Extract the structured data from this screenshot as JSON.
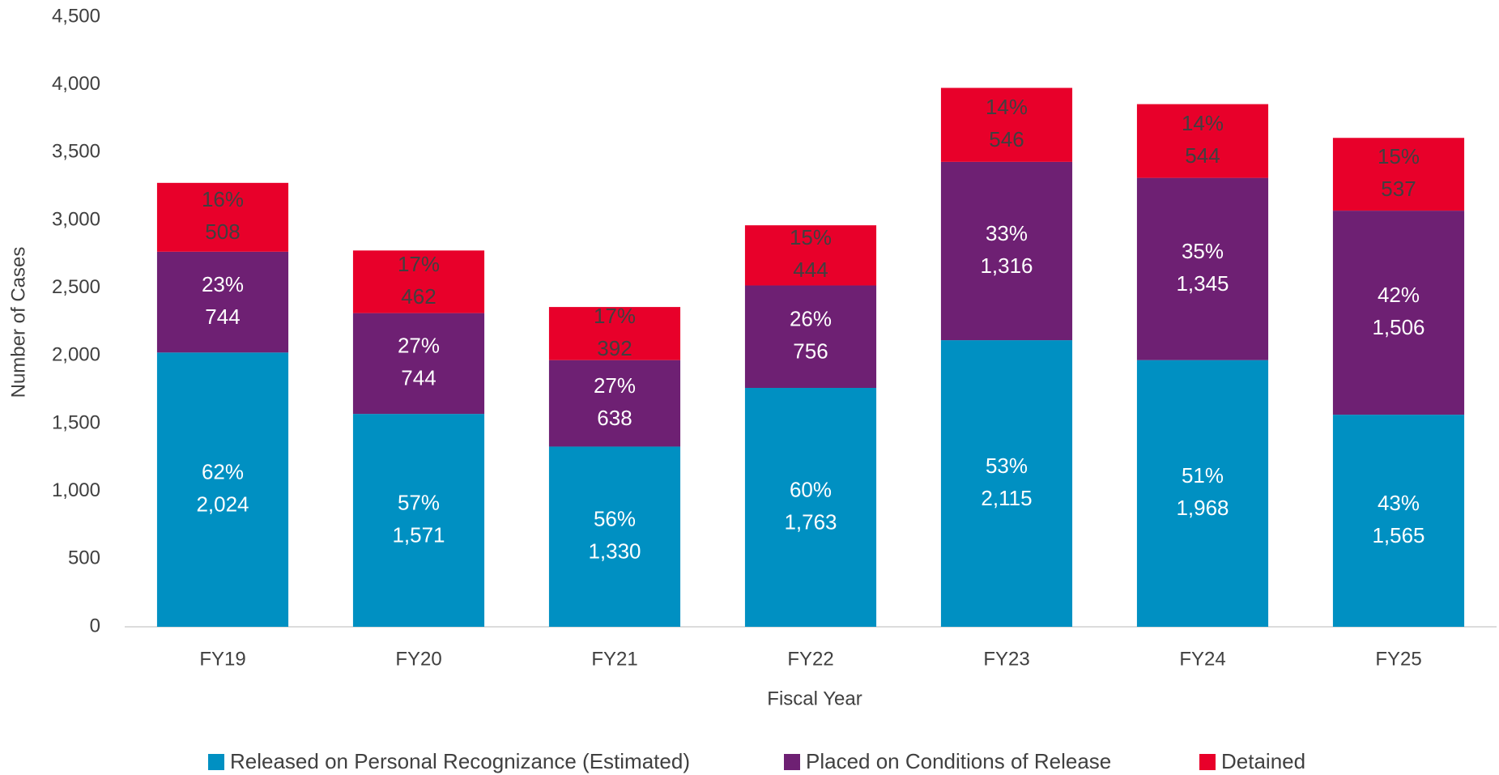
{
  "chart_data": {
    "type": "stacked-bar",
    "x_label": "Fiscal Year",
    "y_label": "Number of Cases",
    "categories": [
      "FY19",
      "FY20",
      "FY21",
      "FY22",
      "FY23",
      "FY24",
      "FY25"
    ],
    "series": [
      {
        "name": "Released on Personal Recognizance (Estimated)",
        "color": "#0090c2",
        "values": [
          2024,
          1571,
          1330,
          1763,
          2115,
          1968,
          1565
        ],
        "value_labels": [
          "2,024",
          "1,571",
          "1,330",
          "1,763",
          "2,115",
          "1,968",
          "1,565"
        ],
        "share_labels": [
          "62%",
          "57%",
          "56%",
          "60%",
          "53%",
          "51%",
          "43%"
        ]
      },
      {
        "name": "Placed on Conditions of Release",
        "color": "#6e2073",
        "values": [
          744,
          744,
          638,
          756,
          1316,
          1345,
          1506
        ],
        "value_labels": [
          "744",
          "744",
          "638",
          "756",
          "1,316",
          "1,345",
          "1,506"
        ],
        "share_labels": [
          "23%",
          "27%",
          "27%",
          "26%",
          "33%",
          "35%",
          "42%"
        ]
      },
      {
        "name": "Detained",
        "color": "#e8002a",
        "values": [
          508,
          462,
          392,
          444,
          546,
          544,
          537
        ],
        "value_labels": [
          "508",
          "462",
          "392",
          "444",
          "546",
          "544",
          "537"
        ],
        "share_labels": [
          "16%",
          "17%",
          "17%",
          "15%",
          "14%",
          "14%",
          "15%"
        ]
      }
    ],
    "ylim": [
      0,
      4500
    ],
    "yticks": [
      0,
      500,
      {
        "value": 1000,
        "label": "1,000"
      },
      {
        "value": 1500,
        "label": "1,500"
      },
      {
        "value": 2000,
        "label": "2,000"
      },
      {
        "value": 2500,
        "label": "2,500"
      },
      {
        "value": 3000,
        "label": "3,000"
      },
      {
        "value": 3500,
        "label": "3,500"
      },
      {
        "value": 4000,
        "label": "4,000"
      },
      {
        "value": 4500,
        "label": "4,500"
      }
    ],
    "legend": "bottom"
  }
}
